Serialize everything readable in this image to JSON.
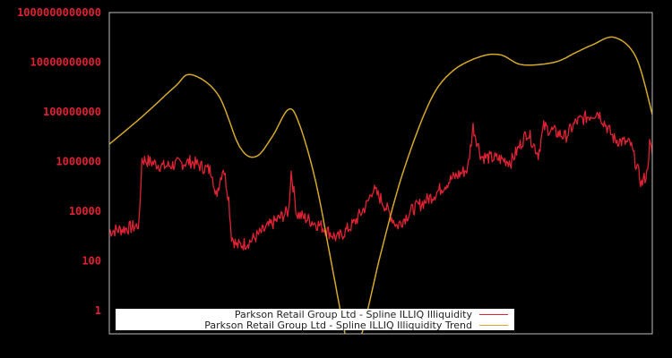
{
  "chart_data": {
    "type": "line",
    "title": "",
    "xlabel": "",
    "ylabel": "",
    "yscale": "log",
    "ylim": [
      0.3,
      1000000000000
    ],
    "y_ticks": [
      {
        "value": 1000000000000,
        "label": "1000000000000"
      },
      {
        "value": 10000000000,
        "label": "10000000000"
      },
      {
        "value": 100000000,
        "label": "100000000"
      },
      {
        "value": 1000000,
        "label": "1000000"
      },
      {
        "value": 10000,
        "label": "10000"
      },
      {
        "value": 100,
        "label": "100"
      },
      {
        "value": 1,
        "label": "1"
      }
    ],
    "x_ticks": [],
    "grid": false,
    "legend_position": "lower center",
    "series": [
      {
        "name": "Parkson Retail Group Ltd - Spline ILLIQ Illiquidity",
        "color": "#dd2233",
        "x_frac": [
          0.0,
          0.03,
          0.05,
          0.055,
          0.06,
          0.1,
          0.15,
          0.19,
          0.195,
          0.21,
          0.22,
          0.225,
          0.235,
          0.25,
          0.26,
          0.3,
          0.33,
          0.335,
          0.345,
          0.39,
          0.42,
          0.45,
          0.475,
          0.485,
          0.5,
          0.53,
          0.56,
          0.575,
          0.6,
          0.63,
          0.66,
          0.67,
          0.685,
          0.72,
          0.74,
          0.77,
          0.79,
          0.8,
          0.84,
          0.86,
          0.9,
          0.93,
          0.96,
          0.98,
          0.99,
          0.995,
          1.0
        ],
        "log10_values": [
          3.2,
          3.3,
          3.4,
          3.5,
          6.1,
          5.8,
          6.0,
          5.6,
          4.5,
          5.8,
          4.5,
          3.0,
          2.6,
          2.7,
          2.8,
          3.5,
          4.0,
          5.6,
          3.9,
          3.4,
          2.9,
          3.5,
          4.3,
          4.9,
          4.5,
          3.4,
          4.1,
          4.3,
          4.7,
          5.3,
          5.7,
          7.4,
          6.2,
          6.1,
          6.0,
          7.2,
          6.3,
          7.4,
          7.0,
          7.6,
          8.0,
          6.9,
          6.7,
          5.1,
          5.5,
          6.7,
          6.3
        ]
      },
      {
        "name": "Parkson Retail Group Ltd - Spline ILLIQ Illiquidity Trend",
        "color": "#d4a92a",
        "x_frac": [
          0.0,
          0.06,
          0.12,
          0.15,
          0.2,
          0.24,
          0.27,
          0.3,
          0.33,
          0.35,
          0.38,
          0.41,
          0.43,
          0.44,
          0.46,
          0.5,
          0.54,
          0.59,
          0.63,
          0.68,
          0.72,
          0.76,
          0.82,
          0.86,
          0.89,
          0.93,
          0.97,
          1.0
        ],
        "log10_values": [
          6.7,
          7.8,
          9.0,
          9.5,
          8.7,
          6.6,
          6.2,
          7.0,
          8.1,
          7.5,
          5.2,
          1.8,
          -0.5,
          -1.3,
          -1.3,
          2.3,
          5.5,
          8.4,
          9.6,
          10.2,
          10.3,
          9.9,
          10.0,
          10.4,
          10.7,
          11.0,
          10.2,
          7.9
        ]
      }
    ]
  },
  "legend": {
    "items": [
      {
        "label": "Parkson Retail Group Ltd - Spline ILLIQ Illiquidity",
        "color": "#dd2233"
      },
      {
        "label": "Parkson Retail Group Ltd - Spline ILLIQ Illiquidity Trend",
        "color": "#d4a92a"
      }
    ]
  }
}
